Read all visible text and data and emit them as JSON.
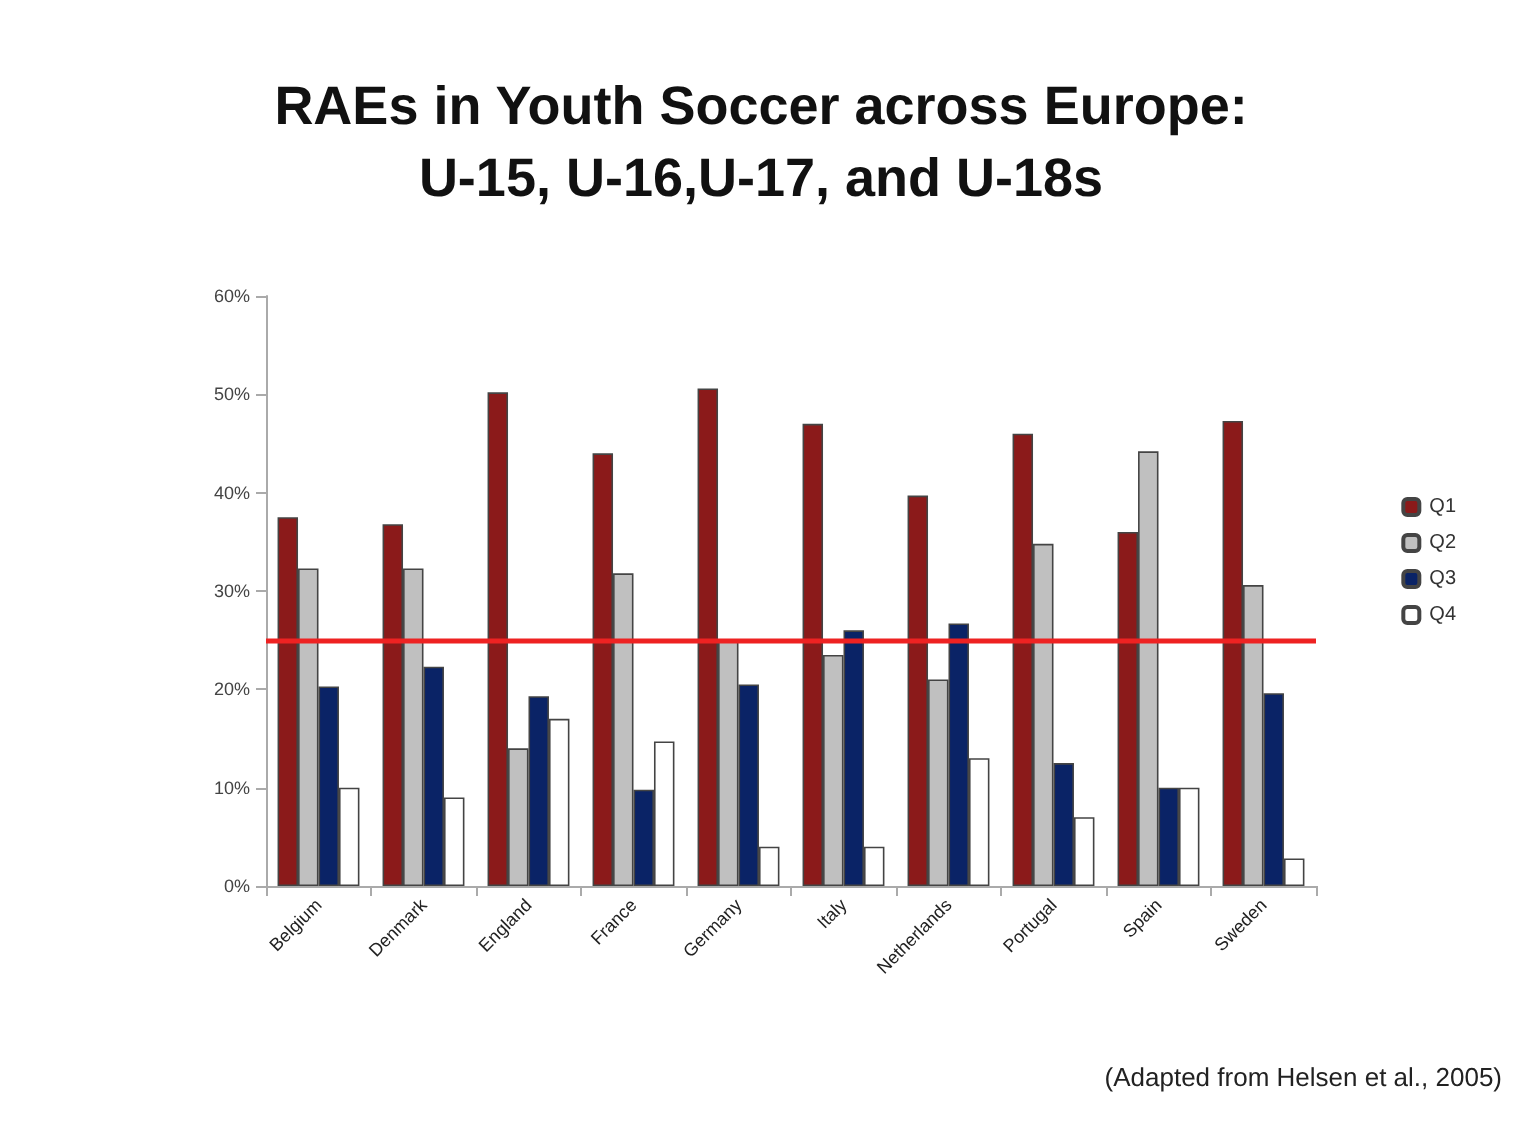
{
  "chart_data": {
    "type": "bar",
    "title": "RAEs in Youth Soccer across Europe:\nU-15, U-16,U-17, and U-18s",
    "categories": [
      "Belgium",
      "Denmark",
      "England",
      "France",
      "Germany",
      "Italy",
      "Netherlands",
      "Portugal",
      "Spain",
      "Sweden"
    ],
    "series": [
      {
        "name": "Q1",
        "color": "#8b1a1a",
        "values": [
          37.5,
          36.8,
          50.2,
          44,
          50.6,
          47,
          39.7,
          46,
          36,
          47.3
        ]
      },
      {
        "name": "Q2",
        "color": "#c0c0c0",
        "values": [
          32.3,
          32.3,
          14,
          31.8,
          25,
          23.5,
          21,
          34.8,
          44.2,
          30.6
        ]
      },
      {
        "name": "Q3",
        "color": "#0a2366",
        "values": [
          20.3,
          22.3,
          19.3,
          9.8,
          20.5,
          26,
          26.7,
          12.5,
          10,
          19.6
        ]
      },
      {
        "name": "Q4",
        "color": "#ffffff",
        "values": [
          10,
          9,
          17,
          14.7,
          4,
          4,
          13,
          7,
          10,
          2.8
        ]
      }
    ],
    "ylim": [
      0,
      60
    ],
    "yticks": [
      {
        "value": 0,
        "label": "0%"
      },
      {
        "value": 10,
        "label": "10%"
      },
      {
        "value": 20,
        "label": "20%"
      },
      {
        "value": 30,
        "label": "30%"
      },
      {
        "value": 40,
        "label": "40%"
      },
      {
        "value": 50,
        "label": "50%"
      },
      {
        "value": 60,
        "label": "60%"
      }
    ],
    "ref_lines": [
      {
        "axis": "y",
        "value": 25,
        "color": "#ee2222"
      }
    ],
    "grid": false,
    "legend": "right",
    "annotations": [
      "(Adapted from Helsen et al., 2005)"
    ]
  }
}
